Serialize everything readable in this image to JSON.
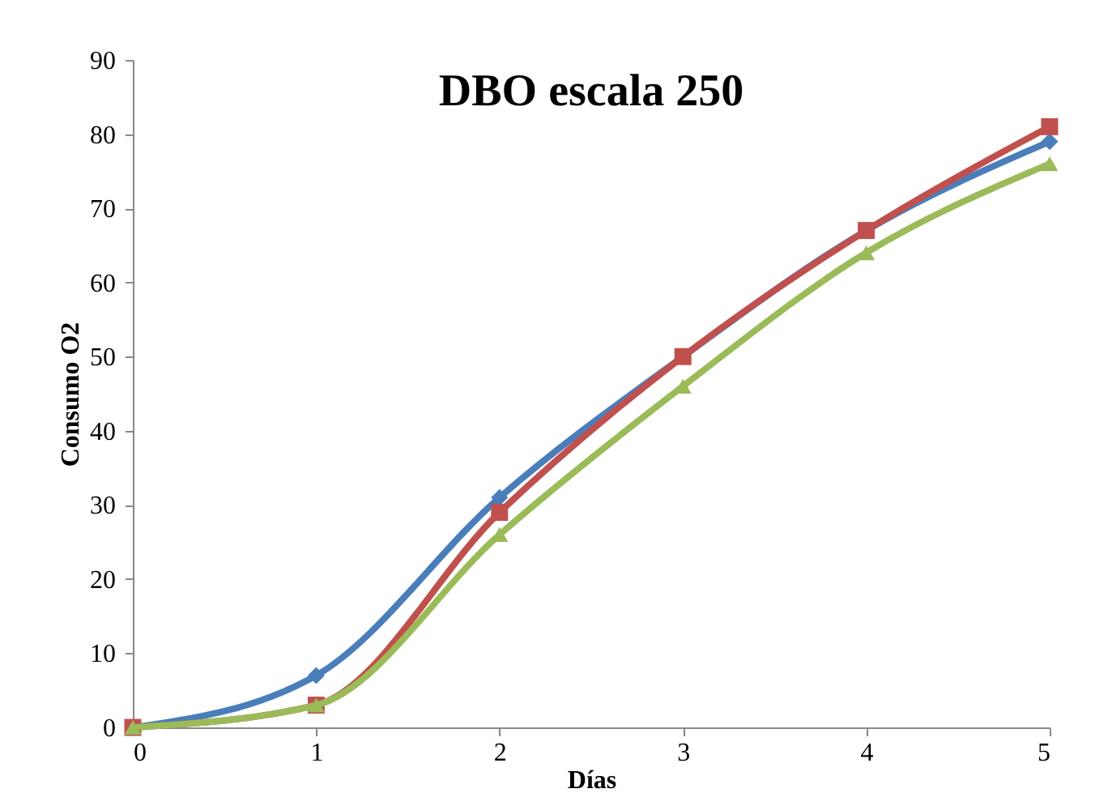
{
  "chart_data": {
    "type": "line",
    "title": "DBO escala 250",
    "xlabel": "Días",
    "ylabel": "Consumo O2",
    "x": [
      0,
      1,
      2,
      3,
      4,
      5
    ],
    "series": [
      {
        "color": "#4a7ebb",
        "marker": "diamond",
        "values": [
          0,
          7,
          31,
          50,
          67,
          79
        ]
      },
      {
        "color": "#c0504d",
        "marker": "square",
        "values": [
          0,
          3,
          29,
          50,
          67,
          81
        ]
      },
      {
        "color": "#9bbb59",
        "marker": "triangle",
        "values": [
          0,
          3,
          26,
          46,
          64,
          76
        ]
      }
    ],
    "xlim": [
      0,
      5
    ],
    "xticks": [
      0,
      1,
      2,
      3,
      4,
      5
    ],
    "ylim": [
      0,
      90
    ],
    "yticks": [
      0,
      10,
      20,
      30,
      40,
      50,
      60,
      70,
      80,
      90
    ],
    "grid": false
  }
}
